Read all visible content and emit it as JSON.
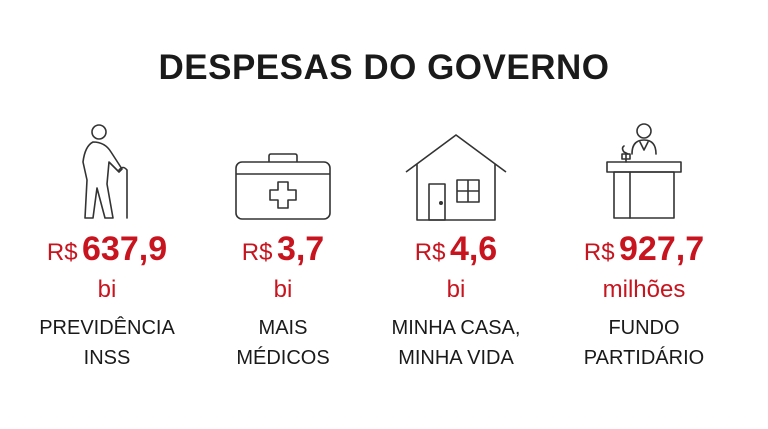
{
  "title": "DESPESAS DO GOVERNO",
  "colors": {
    "accent": "#c8141e",
    "text": "#1a1a1a",
    "icon_stroke": "#333333"
  },
  "items": [
    {
      "icon": "elderly-person-cane-icon",
      "currency": "R$",
      "value": "637,9",
      "unit": "bi",
      "label_line1": "PREVIDÊNCIA",
      "label_line2": "INSS"
    },
    {
      "icon": "first-aid-kit-icon",
      "currency": "R$",
      "value": "3,7",
      "unit": "bi",
      "label_line1": "MAIS",
      "label_line2": "MÉDICOS"
    },
    {
      "icon": "house-icon",
      "currency": "R$",
      "value": "4,6",
      "unit": "bi",
      "label_line1": "MINHA CASA,",
      "label_line2": "MINHA VIDA"
    },
    {
      "icon": "speaker-podium-icon",
      "currency": "R$",
      "value": "927,7",
      "unit": "milhões",
      "label_line1": "FUNDO",
      "label_line2": "PARTIDÁRIO"
    }
  ]
}
